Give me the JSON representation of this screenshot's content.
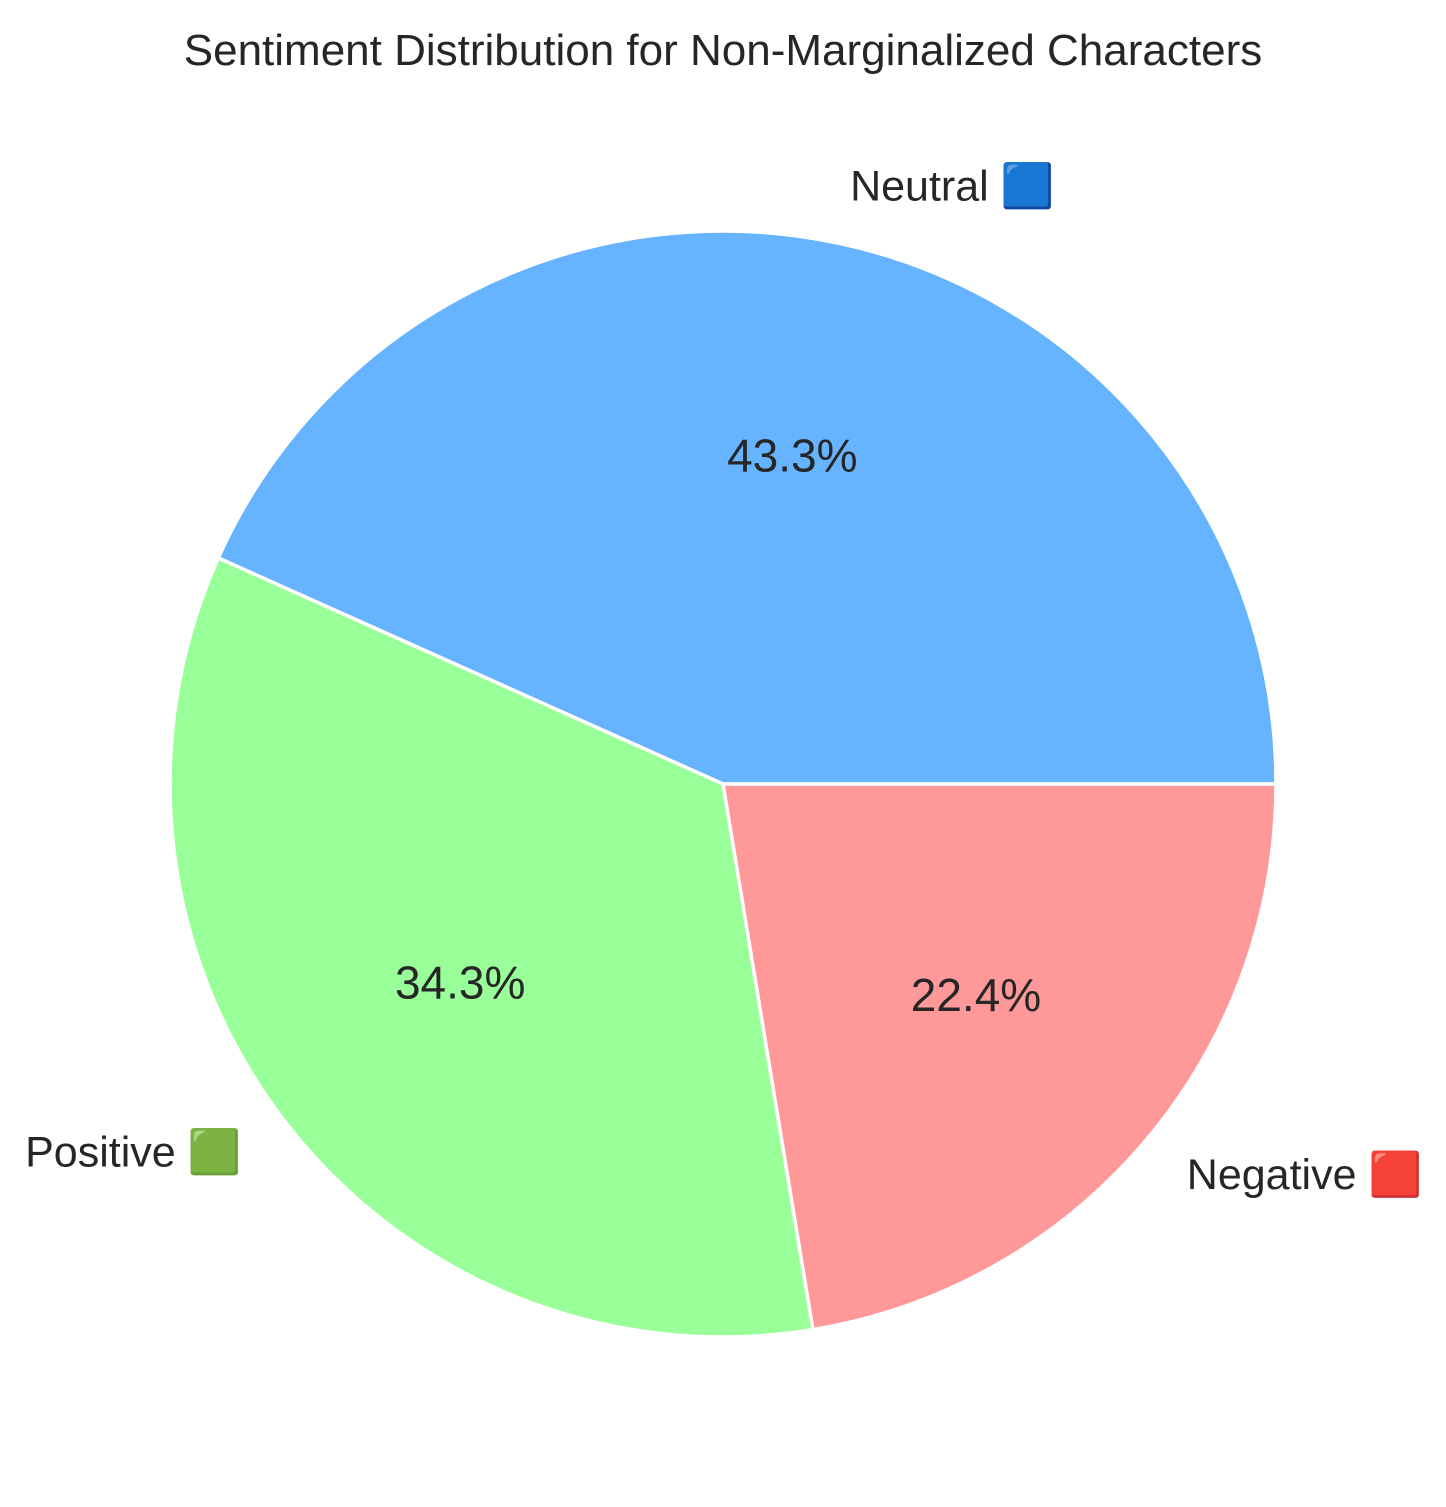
{
  "chart_data": {
    "type": "pie",
    "title": "Sentiment Distribution for Non-Marginalized Characters",
    "start_angle_deg": 0,
    "direction": "counterclockwise",
    "slices": [
      {
        "label": "Neutral 🟦",
        "value": 43.3,
        "pct_label": "43.3%",
        "color": "#66b3ff"
      },
      {
        "label": "Positive 🟩",
        "value": 34.3,
        "pct_label": "34.3%",
        "color": "#99ff99"
      },
      {
        "label": "Negative 🟥",
        "value": 22.4,
        "pct_label": "22.4%",
        "color": "#ff9999"
      }
    ],
    "legend": "none"
  }
}
